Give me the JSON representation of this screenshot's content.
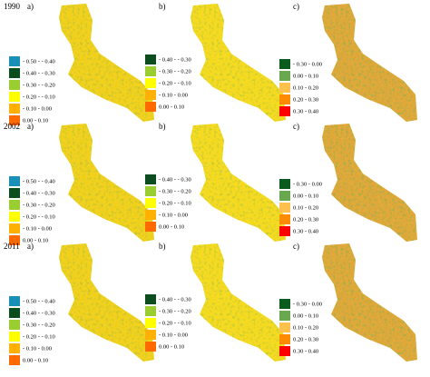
{
  "rows": [
    {
      "year": "1990",
      "panels": [
        {
          "label": "a)",
          "legend": [
            {
              "label": "- 0.50 - - 0.40",
              "color": "#1a8fb8"
            },
            {
              "label": "- 0.40 - - 0.30",
              "color": "#0b4d1e"
            },
            {
              "label": "- 0.30 - - 0.20",
              "color": "#9acd32"
            },
            {
              "label": "- 0.20 - - 0.10",
              "color": "#ffff00"
            },
            {
              "label": "- 0.10 - 0.00",
              "color": "#ffb000"
            },
            {
              "label": "0.00 - 0.10",
              "color": "#ff6a00"
            }
          ]
        },
        {
          "label": "b)",
          "legend": [
            {
              "label": "- 0.40 - - 0.30",
              "color": "#0b4d1e"
            },
            {
              "label": "- 0.30 - - 0.20",
              "color": "#9acd32"
            },
            {
              "label": "- 0.20 - - 0.10",
              "color": "#ffff00"
            },
            {
              "label": "- 0.10 - 0.00",
              "color": "#ffb000"
            },
            {
              "label": "0.00 - 0.10",
              "color": "#ff6a00"
            }
          ]
        },
        {
          "label": "c)",
          "legend": [
            {
              "label": "- 0.30 - 0.00",
              "color": "#0b5a1e"
            },
            {
              "label": "0.00 - 0.10",
              "color": "#6aa84f"
            },
            {
              "label": "0.10 - 0.20",
              "color": "#ffc04d"
            },
            {
              "label": "0.20 - 0.30",
              "color": "#ff8c00"
            },
            {
              "label": "0.30 - 0.40",
              "color": "#ff0000"
            }
          ]
        }
      ]
    },
    {
      "year": "2002",
      "panels": [
        {
          "label": "a)",
          "legend": [
            {
              "label": "- 0.50 - - 0.40",
              "color": "#1a8fb8"
            },
            {
              "label": "- 0.40 - - 0.30",
              "color": "#0b4d1e"
            },
            {
              "label": "- 0.30 - - 0.20",
              "color": "#9acd32"
            },
            {
              "label": "- 0.20 - - 0.10",
              "color": "#ffff00"
            },
            {
              "label": "- 0.10 - 0.00",
              "color": "#ffb000"
            },
            {
              "label": "0.00 - 0.10",
              "color": "#ff6a00"
            }
          ]
        },
        {
          "label": "b)",
          "legend": [
            {
              "label": "- 0.40 - - 0.30",
              "color": "#0b4d1e"
            },
            {
              "label": "- 0.30 - - 0.20",
              "color": "#9acd32"
            },
            {
              "label": "- 0.20 - - 0.10",
              "color": "#ffff00"
            },
            {
              "label": "- 0.10 - 0.00",
              "color": "#ffb000"
            },
            {
              "label": "0.00 - 0.10",
              "color": "#ff6a00"
            }
          ]
        },
        {
          "label": "c)",
          "legend": [
            {
              "label": "- 0.30 - 0.00",
              "color": "#0b5a1e"
            },
            {
              "label": "0.00 - 0.10",
              "color": "#6aa84f"
            },
            {
              "label": "0.10 - 0.20",
              "color": "#ffc04d"
            },
            {
              "label": "0.20 - 0.30",
              "color": "#ff8c00"
            },
            {
              "label": "0.30 - 0.40",
              "color": "#ff0000"
            }
          ]
        }
      ]
    },
    {
      "year": "2011",
      "panels": [
        {
          "label": "a)",
          "legend": [
            {
              "label": "- 0.50 - - 0.40",
              "color": "#1a8fb8"
            },
            {
              "label": "- 0.40 - - 0.30",
              "color": "#0b4d1e"
            },
            {
              "label": "- 0.30 - - 0.20",
              "color": "#9acd32"
            },
            {
              "label": "- 0.20 - - 0.10",
              "color": "#ffff00"
            },
            {
              "label": "- 0.10 - 0.00",
              "color": "#ffb000"
            },
            {
              "label": "0.00 - 0.10",
              "color": "#ff6a00"
            }
          ]
        },
        {
          "label": "b)",
          "legend": [
            {
              "label": "- 0.40 - - 0.30",
              "color": "#0b4d1e"
            },
            {
              "label": "- 0.30 - - 0.20",
              "color": "#9acd32"
            },
            {
              "label": "- 0.20 - - 0.10",
              "color": "#ffff00"
            },
            {
              "label": "- 0.10 - 0.00",
              "color": "#ffb000"
            },
            {
              "label": "0.00 - 0.10",
              "color": "#ff6a00"
            }
          ]
        },
        {
          "label": "c)",
          "legend": [
            {
              "label": "- 0.30 - 0.00",
              "color": "#0b5a1e"
            },
            {
              "label": "0.00 - 0.10",
              "color": "#6aa84f"
            },
            {
              "label": "0.10 - 0.20",
              "color": "#ffc04d"
            },
            {
              "label": "0.20 - 0.30",
              "color": "#ff8c00"
            },
            {
              "label": "0.30 - 0.40",
              "color": "#ff0000"
            }
          ]
        }
      ]
    }
  ]
}
